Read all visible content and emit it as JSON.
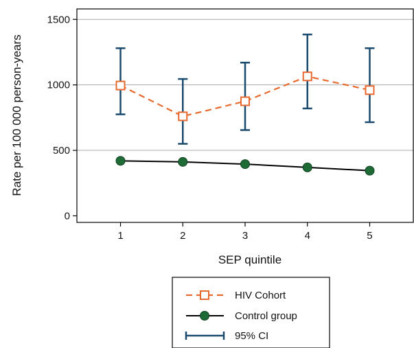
{
  "chart_data": {
    "type": "line",
    "title": "",
    "xlabel": "SEP quintile",
    "ylabel": "Rate per 100 000 person-years",
    "categories": [
      1,
      2,
      3,
      4,
      5
    ],
    "xlim": [
      0.3,
      5.7
    ],
    "ylim": [
      -50,
      1580
    ],
    "yticks": [
      0,
      500,
      1000,
      1500
    ],
    "grid": "horizontal",
    "legend_position": "bottom",
    "series": [
      {
        "name": "HIV Cohort",
        "values": [
          995,
          760,
          875,
          1065,
          960
        ],
        "ci_low": [
          775,
          550,
          655,
          820,
          715
        ],
        "ci_high": [
          1280,
          1045,
          1170,
          1385,
          1280
        ],
        "color": "#e8692e",
        "line_style": "dashed",
        "marker": "open-square"
      },
      {
        "name": "Control group",
        "values": [
          420,
          412,
          395,
          370,
          345
        ],
        "color": "#1e6b36",
        "line_color": "#000000",
        "line_style": "solid",
        "marker": "filled-circle"
      }
    ],
    "ci_legend_label": "95% CI",
    "ci_color": "#1a4a6e"
  }
}
